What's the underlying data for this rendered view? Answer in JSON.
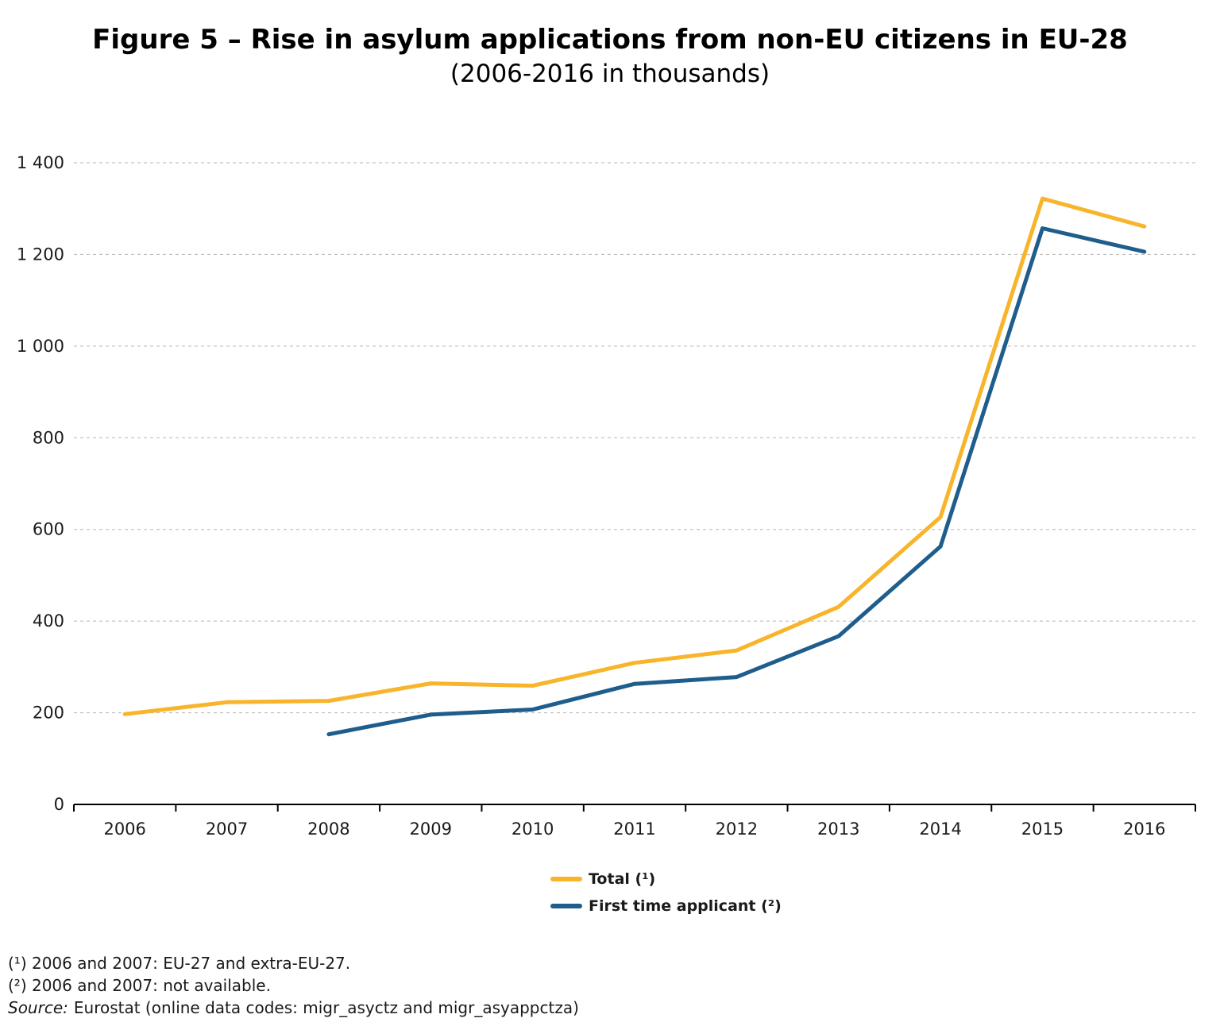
{
  "header": {
    "title": "Figure 5 – Rise in asylum applications from non-EU citizens in EU-28",
    "subtitle": "(2006-2016 in thousands)"
  },
  "chart_data": {
    "type": "line",
    "title": "Figure 5 – Rise in asylum applications from non-EU citizens in EU-28",
    "subtitle": "(2006-2016 in thousands)",
    "unit": "thousands",
    "x": [
      "2006",
      "2007",
      "2008",
      "2009",
      "2010",
      "2011",
      "2012",
      "2013",
      "2014",
      "2015",
      "2016"
    ],
    "series": [
      {
        "name": "Total (¹)",
        "color": "#F8B52B",
        "values": [
          197,
          223,
          226,
          264,
          259,
          309,
          336,
          431,
          627,
          1322,
          1261
        ]
      },
      {
        "name": "First time applicant (²)",
        "color": "#1E5D8C",
        "values": [
          null,
          null,
          153,
          196,
          207,
          263,
          278,
          367,
          563,
          1257,
          1206
        ]
      }
    ],
    "ylim": [
      0,
      1400
    ],
    "ytick_step": 200,
    "ytick_labels": [
      "0",
      "200",
      "400",
      "600",
      "800",
      "1 000",
      "1 200",
      "1 400"
    ],
    "grid": "horizontal-dashed",
    "grid_color": "#b5b5b5",
    "axis_color": "#000000",
    "legend_position": "bottom-center"
  },
  "legend": {
    "items": [
      {
        "label": "Total (¹)"
      },
      {
        "label": "First time applicant (²)"
      }
    ]
  },
  "footnotes": {
    "note1": "(¹) 2006 and 2007: EU-27 and extra-EU-27.",
    "note2": "(²) 2006 and 2007: not available.",
    "source_label": "Source:",
    "source_text": "Eurostat (online data codes: migr_asyctz and migr_asyappctza)"
  }
}
